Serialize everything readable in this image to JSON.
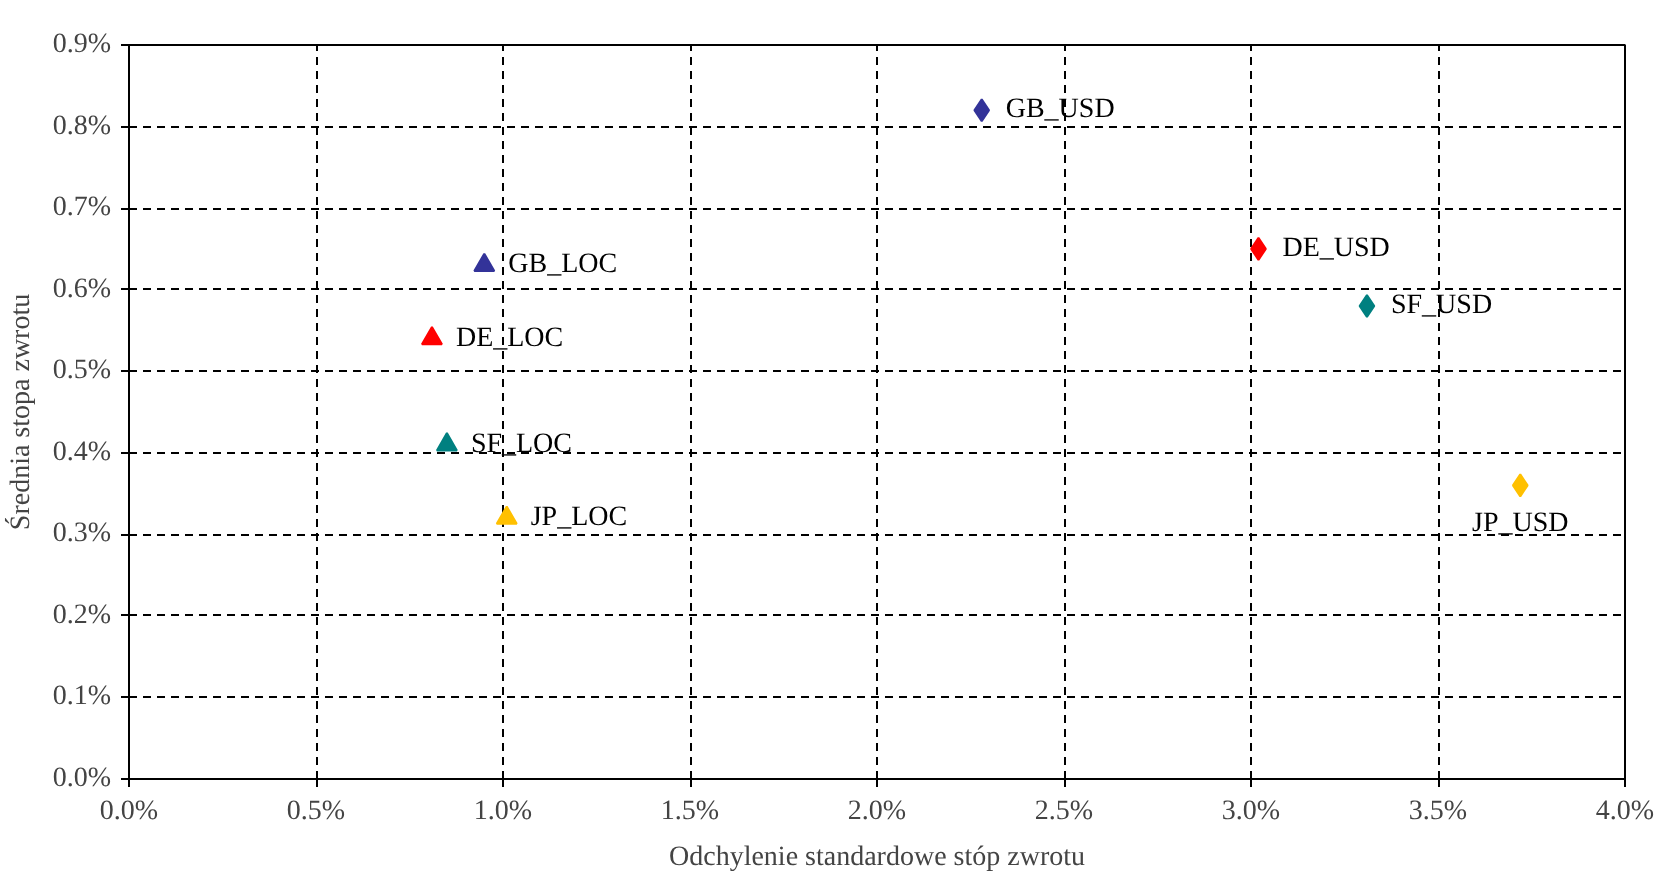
{
  "chart_data": {
    "type": "scatter",
    "xlabel": "Odchylenie standardowe stóp zwrotu",
    "ylabel": "Średnia stopa zwrotu",
    "xlim": [
      0,
      4.0
    ],
    "ylim": [
      0,
      0.9
    ],
    "xticks": [
      {
        "value": 0,
        "label": "0.0%"
      },
      {
        "value": 0.5,
        "label": "0.5%"
      },
      {
        "value": 1.0,
        "label": "1.0%"
      },
      {
        "value": 1.5,
        "label": "1.5%"
      },
      {
        "value": 2.0,
        "label": "2.0%"
      },
      {
        "value": 2.5,
        "label": "2.5%"
      },
      {
        "value": 3.0,
        "label": "3.0%"
      },
      {
        "value": 3.5,
        "label": "3.5%"
      },
      {
        "value": 4.0,
        "label": "4.0%"
      }
    ],
    "yticks": [
      {
        "value": 0,
        "label": "0.0%"
      },
      {
        "value": 0.1,
        "label": "0.1%"
      },
      {
        "value": 0.2,
        "label": "0.2%"
      },
      {
        "value": 0.3,
        "label": "0.3%"
      },
      {
        "value": 0.4,
        "label": "0.4%"
      },
      {
        "value": 0.5,
        "label": "0.5%"
      },
      {
        "value": 0.6,
        "label": "0.6%"
      },
      {
        "value": 0.7,
        "label": "0.7%"
      },
      {
        "value": 0.8,
        "label": "0.8%"
      },
      {
        "value": 0.9,
        "label": "0.9%"
      }
    ],
    "grid": true,
    "series": [
      {
        "name": "GB_USD",
        "color": "#333399",
        "marker": "diamond",
        "x": [
          2.28
        ],
        "values": [
          0.82
        ]
      },
      {
        "name": "DE_USD",
        "color": "#ff0000",
        "marker": "diamond",
        "x": [
          3.02
        ],
        "values": [
          0.65
        ]
      },
      {
        "name": "SF_USD",
        "color": "#008080",
        "marker": "diamond",
        "x": [
          3.31
        ],
        "values": [
          0.58
        ]
      },
      {
        "name": "JP_USD",
        "color": "#ffc000",
        "marker": "diamond",
        "x": [
          3.72
        ],
        "values": [
          0.36
        ]
      },
      {
        "name": "GB_LOC",
        "color": "#333399",
        "marker": "triangle",
        "x": [
          0.95
        ],
        "values": [
          0.63
        ]
      },
      {
        "name": "DE_LOC",
        "color": "#ff0000",
        "marker": "triangle",
        "x": [
          0.81
        ],
        "values": [
          0.54
        ]
      },
      {
        "name": "SF_LOC",
        "color": "#008080",
        "marker": "triangle",
        "x": [
          0.85
        ],
        "values": [
          0.41
        ]
      },
      {
        "name": "JP_LOC",
        "color": "#ffc000",
        "marker": "triangle",
        "x": [
          1.01
        ],
        "values": [
          0.32
        ]
      }
    ]
  }
}
